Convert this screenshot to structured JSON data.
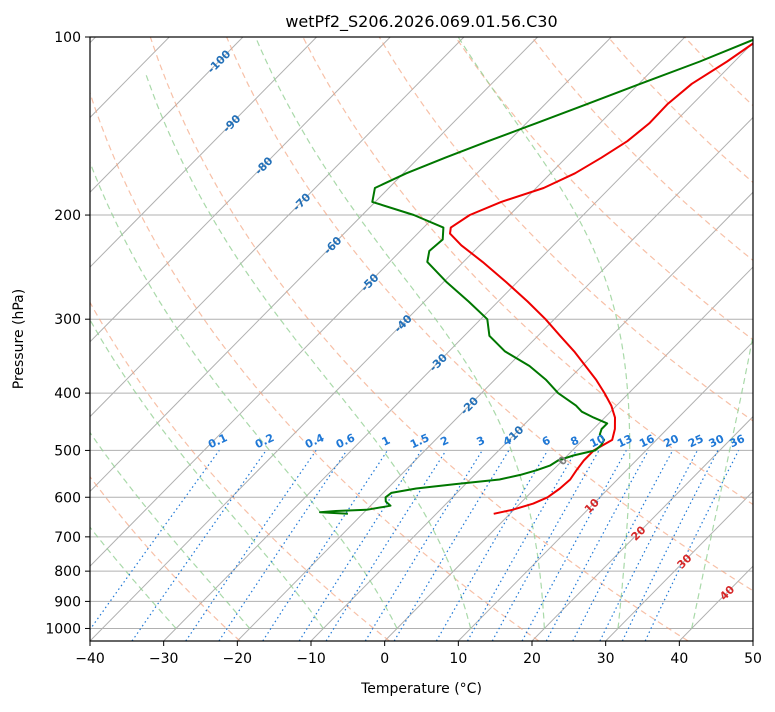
{
  "chart_data": {
    "type": "line",
    "diagram": "skew-T log-P",
    "title": "wetPf2_S206.2026.069.01.56.C30",
    "xlabel": "Temperature (°C)",
    "ylabel": "Pressure (hPa)",
    "xlim": [
      -40,
      50
    ],
    "ylim_hPa": [
      1050,
      100
    ],
    "x_ticks": [
      -40,
      -30,
      -20,
      -10,
      0,
      10,
      20,
      30,
      40,
      50
    ],
    "x_tick_labels": [
      "−40",
      "−30",
      "−20",
      "−10",
      "0",
      "10",
      "20",
      "30",
      "40",
      "50"
    ],
    "y_ticks": [
      100,
      200,
      300,
      400,
      500,
      600,
      700,
      800,
      900,
      1000
    ],
    "y_tick_labels": [
      "100",
      "200",
      "300",
      "400",
      "500",
      "600",
      "700",
      "800",
      "900",
      "1000"
    ],
    "grid": true,
    "colors": {
      "temperature": "#ee0000",
      "dewpoint": "#007700",
      "dry_adiabat": "#f4a582",
      "moist_adiabat": "#93cf93",
      "mixing_ratio": "#1f78d6",
      "isotherm": "#b0b0b0",
      "grid": "#b0b0b0",
      "isotherm_label": "#2370b8",
      "theta_label": "#d62728",
      "zero_label": "#808080"
    },
    "series": [
      {
        "name": "temperature",
        "pressure_hPa": [
          640,
          630,
          615,
          600,
          580,
          560,
          540,
          520,
          500,
          480,
          460,
          440,
          420,
          400,
          380,
          360,
          340,
          320,
          300,
          280,
          260,
          240,
          225,
          215,
          210,
          200,
          190,
          180,
          170,
          160,
          150,
          140,
          130,
          120,
          110,
          100
        ],
        "temperature_C": [
          -2.2,
          -0.2,
          1.8,
          2.9,
          3.4,
          3.6,
          3.2,
          2.9,
          2.9,
          4.0,
          2.9,
          1.4,
          -0.7,
          -3.3,
          -6.2,
          -9.5,
          -13.0,
          -17.0,
          -21.2,
          -26.0,
          -31.4,
          -37.4,
          -42.5,
          -45.6,
          -46.3,
          -45.4,
          -42.9,
          -39.0,
          -36.7,
          -35.2,
          -33.9,
          -33.3,
          -33.4,
          -32.8,
          -31.0,
          -29.5
        ]
      },
      {
        "name": "dewpoint",
        "pressure_hPa": [
          640,
          638,
          636,
          633,
          630,
          620,
          610,
          600,
          590,
          580,
          570,
          560,
          550,
          540,
          530,
          520,
          510,
          500,
          490,
          480,
          470,
          460,
          450,
          440,
          430,
          420,
          400,
          380,
          360,
          340,
          320,
          300,
          280,
          260,
          240,
          230,
          220,
          210,
          200,
          190,
          180,
          170,
          160,
          150,
          140,
          130,
          120,
          110,
          100
        ],
        "temperature_C": [
          -22.0,
          -24.0,
          -26.0,
          -24.0,
          -20.0,
          -17.3,
          -18.5,
          -19.1,
          -18.9,
          -16.1,
          -11.4,
          -6.0,
          -3.8,
          -2.2,
          -1.0,
          -0.6,
          0.8,
          3.1,
          3.2,
          2.9,
          1.6,
          1.1,
          1.1,
          -1.5,
          -3.9,
          -5.5,
          -9.6,
          -13.0,
          -17.1,
          -22.4,
          -26.6,
          -29.1,
          -34.0,
          -39.5,
          -44.9,
          -46.1,
          -45.8,
          -47.3,
          -53.0,
          -60.4,
          -61.9,
          -59.6,
          -56.4,
          -52.8,
          -48.7,
          -44.4,
          -39.8,
          -34.7,
          -29.8
        ]
      }
    ],
    "isotherm_labels": [
      "-100",
      "-90",
      "-80",
      "-70",
      "-60",
      "-50",
      "-40",
      "-30",
      "-20",
      "-10"
    ],
    "isotherm_label_values": [
      -100,
      -90,
      -80,
      -70,
      -60,
      -50,
      -40,
      -30,
      -20,
      -10
    ],
    "mixing_ratio_labels": [
      "0.1",
      "0.2",
      "0.4",
      "0.6",
      "1",
      "1.5",
      "2",
      "3",
      "4",
      "6",
      "8",
      "10",
      "13",
      "16",
      "20",
      "25",
      "30",
      "36"
    ],
    "mixing_ratio_values_gkg": [
      0.1,
      0.2,
      0.4,
      0.6,
      1,
      1.5,
      2,
      3,
      4,
      6,
      8,
      10,
      13,
      16,
      20,
      25,
      30,
      36
    ],
    "moist_adiabat_labels": [
      "0",
      "10",
      "20",
      "30",
      "40"
    ],
    "moist_adiabat_values_C": [
      0,
      10,
      20,
      30,
      40
    ],
    "dry_adiabat_theta_K": [
      230,
      250,
      270,
      290,
      310,
      330,
      350,
      370,
      390,
      410,
      430,
      450,
      470,
      490,
      510,
      530,
      550,
      570,
      590
    ],
    "moist_adiabat_start_C": [
      -30,
      -20,
      -10,
      0,
      10,
      20,
      30,
      40
    ]
  }
}
